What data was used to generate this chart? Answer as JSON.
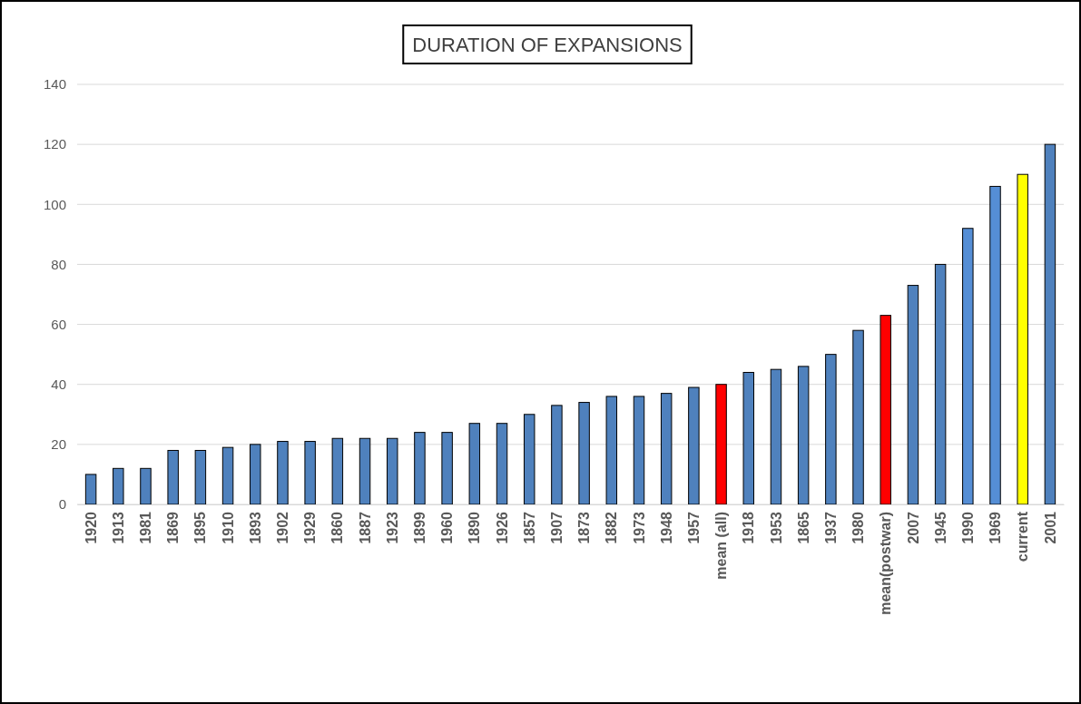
{
  "chart_data": {
    "type": "bar",
    "title": "DURATION OF EXPANSIONS",
    "categories": [
      "1920",
      "1913",
      "1981",
      "1869",
      "1895",
      "1910",
      "1893",
      "1902",
      "1929",
      "1860",
      "1887",
      "1923",
      "1899",
      "1960",
      "1890",
      "1926",
      "1857",
      "1907",
      "1873",
      "1882",
      "1973",
      "1948",
      "1957",
      "mean (all)",
      "1918",
      "1953",
      "1865",
      "1937",
      "1980",
      "mean(postwar)",
      "2007",
      "1945",
      "1990",
      "1969",
      "current",
      "2001"
    ],
    "values": [
      10,
      12,
      12,
      18,
      18,
      19,
      20,
      21,
      21,
      22,
      22,
      22,
      24,
      24,
      27,
      27,
      30,
      33,
      34,
      36,
      36,
      37,
      39,
      40,
      44,
      45,
      46,
      50,
      58,
      63,
      73,
      80,
      92,
      106,
      110,
      120
    ],
    "colors": [
      "#4f81bd",
      "#4f81bd",
      "#4f81bd",
      "#4f81bd",
      "#4f81bd",
      "#4f81bd",
      "#4f81bd",
      "#4f81bd",
      "#4f81bd",
      "#4f81bd",
      "#4f81bd",
      "#4f81bd",
      "#4f81bd",
      "#4f81bd",
      "#4f81bd",
      "#4f81bd",
      "#4f81bd",
      "#4f81bd",
      "#4f81bd",
      "#4f81bd",
      "#4f81bd",
      "#4f81bd",
      "#4f81bd",
      "#ff0000",
      "#4f81bd",
      "#4f81bd",
      "#4f81bd",
      "#4f81bd",
      "#4f81bd",
      "#ff0000",
      "#4f81bd",
      "#4f81bd",
      "#558ed5",
      "#558ed5",
      "#ffff00",
      "#4f81bd"
    ],
    "ylim": [
      0,
      140
    ],
    "yticks": [
      0,
      20,
      40,
      60,
      80,
      100,
      120,
      140
    ],
    "grid": "y"
  }
}
